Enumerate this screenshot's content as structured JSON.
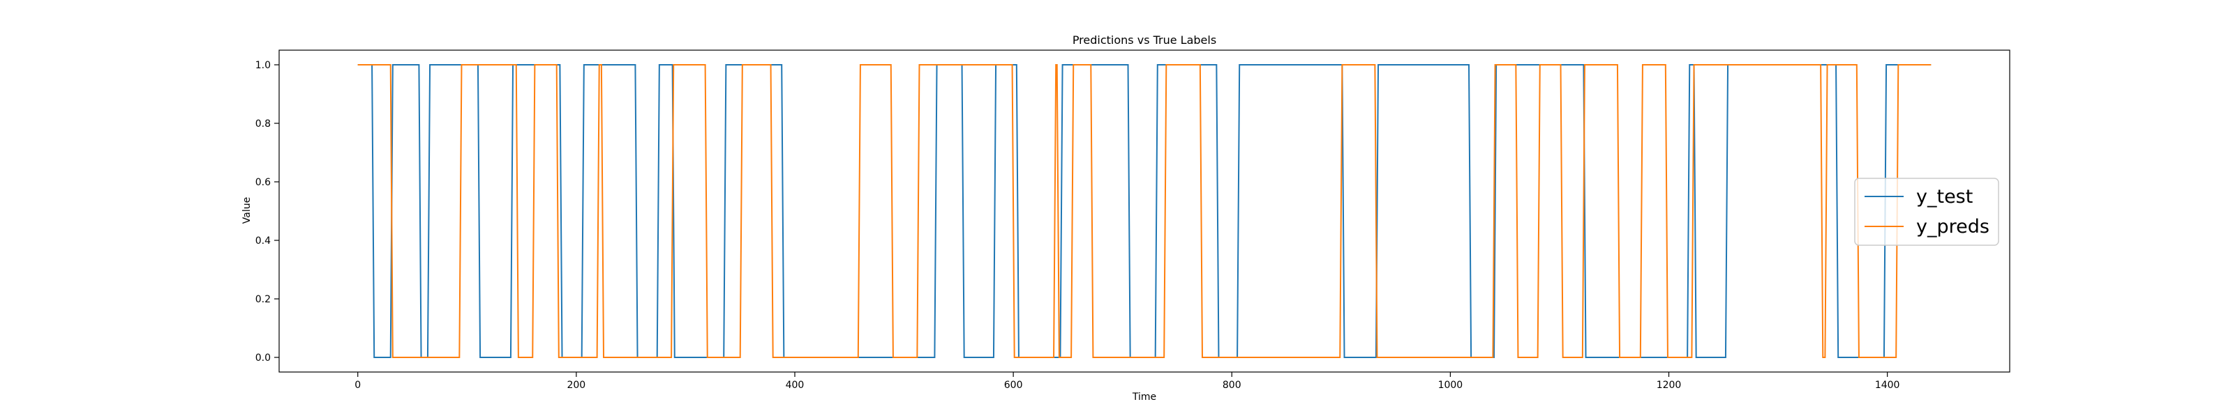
{
  "chart_data": {
    "type": "line",
    "title": "Predictions vs True Labels",
    "xlabel": "Time",
    "ylabel": "Value",
    "xlim": [
      -72,
      1512
    ],
    "ylim": [
      -0.05,
      1.05
    ],
    "x_ticks": [
      0,
      200,
      400,
      600,
      800,
      1000,
      1200,
      1400
    ],
    "y_ticks": [
      0.0,
      0.2,
      0.4,
      0.6,
      0.8,
      1.0
    ],
    "y_tick_labels": [
      "0.0",
      "0.2",
      "0.4",
      "0.6",
      "0.8",
      "1.0"
    ],
    "grid": false,
    "legend_position": "center-right",
    "series": [
      {
        "name": "y_test",
        "color": "#1f77b4",
        "x": [
          0,
          13,
          15,
          30,
          32,
          56,
          58,
          64,
          66,
          110,
          112,
          140,
          142,
          185,
          187,
          205,
          207,
          254,
          256,
          274,
          276,
          288,
          290,
          335,
          337,
          388,
          390,
          528,
          530,
          553,
          555,
          582,
          584,
          603,
          605,
          643,
          645,
          705,
          707,
          730,
          732,
          786,
          788,
          805,
          807,
          901,
          903,
          932,
          934,
          1017,
          1019,
          1040,
          1042,
          1122,
          1124,
          1217,
          1219,
          1223,
          1225,
          1252,
          1254,
          1353,
          1355,
          1397,
          1399,
          1440
        ],
        "y": [
          1,
          1,
          0,
          0,
          1,
          1,
          0,
          0,
          1,
          1,
          0,
          0,
          1,
          1,
          0,
          0,
          1,
          1,
          0,
          0,
          1,
          1,
          0,
          0,
          1,
          1,
          0,
          0,
          1,
          1,
          0,
          0,
          1,
          1,
          0,
          0,
          1,
          1,
          0,
          0,
          1,
          1,
          0,
          0,
          1,
          1,
          0,
          0,
          1,
          1,
          0,
          0,
          1,
          1,
          0,
          0,
          1,
          1,
          0,
          0,
          1,
          1,
          0,
          0,
          1,
          1
        ]
      },
      {
        "name": "y_preds",
        "color": "#ff7f0e",
        "x": [
          0,
          30,
          32,
          93,
          95,
          145,
          147,
          160,
          162,
          182,
          184,
          219,
          221,
          223,
          225,
          287,
          289,
          318,
          320,
          350,
          352,
          378,
          380,
          458,
          460,
          488,
          490,
          512,
          514,
          599,
          601,
          637,
          639,
          640,
          642,
          653,
          655,
          671,
          673,
          738,
          740,
          771,
          773,
          899,
          901,
          931,
          933,
          1039,
          1041,
          1060,
          1062,
          1080,
          1082,
          1101,
          1103,
          1121,
          1123,
          1153,
          1155,
          1174,
          1176,
          1197,
          1199,
          1221,
          1223,
          1339,
          1341,
          1343,
          1345,
          1372,
          1374,
          1408,
          1410,
          1440
        ],
        "y": [
          1,
          1,
          0,
          0,
          1,
          1,
          0,
          0,
          1,
          1,
          0,
          0,
          1,
          1,
          0,
          0,
          1,
          1,
          0,
          0,
          1,
          1,
          0,
          0,
          1,
          1,
          0,
          0,
          1,
          1,
          0,
          0,
          1,
          1,
          0,
          0,
          1,
          1,
          0,
          0,
          1,
          1,
          0,
          0,
          1,
          1,
          0,
          0,
          1,
          1,
          0,
          0,
          1,
          1,
          0,
          0,
          1,
          1,
          0,
          0,
          1,
          1,
          0,
          0,
          1,
          1,
          0,
          0,
          1,
          1,
          0,
          0,
          1,
          1
        ]
      }
    ]
  }
}
